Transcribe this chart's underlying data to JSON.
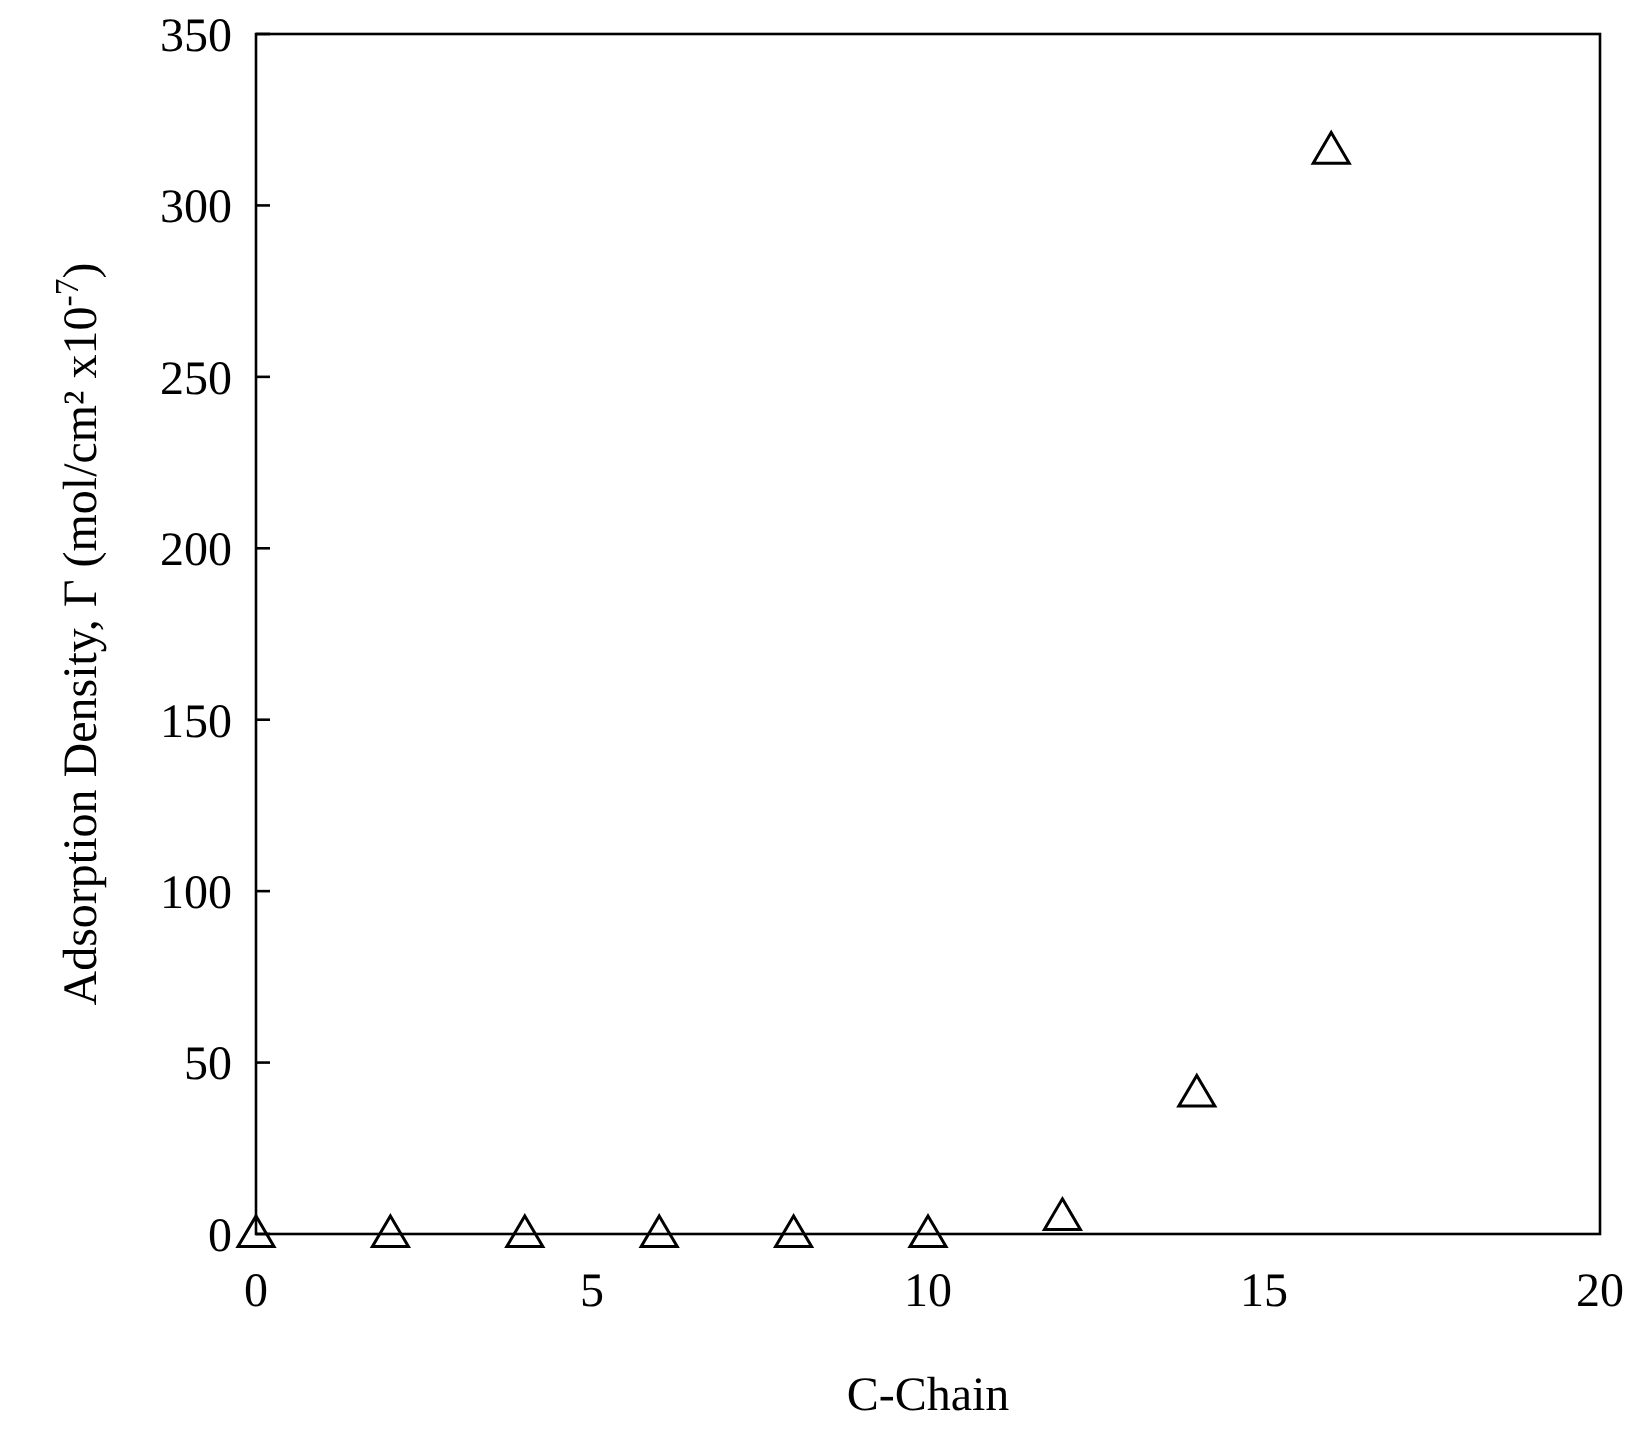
{
  "chart_data": {
    "type": "scatter",
    "xlabel": "C-Chain",
    "ylabel": "Adsorption Density, Γ (mol/cm² x10$^{-7}$)",
    "x": [
      0,
      2,
      4,
      6,
      8,
      10,
      12,
      14,
      16
    ],
    "series": [
      {
        "color": "#000000",
        "values": [
          0,
          0,
          0,
          0,
          0,
          0,
          5,
          41,
          316
        ]
      }
    ],
    "xlim": [
      0,
      20
    ],
    "xticks": [
      0,
      5,
      10,
      15,
      20
    ],
    "ylim": [
      0,
      350
    ],
    "yticks": [
      0,
      50,
      100,
      150,
      200,
      250,
      300,
      350
    ],
    "marker": "triangle",
    "grid": false
  }
}
